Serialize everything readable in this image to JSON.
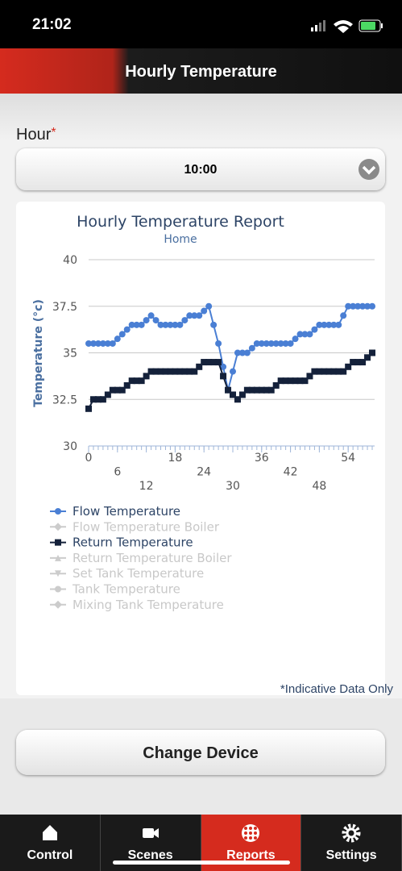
{
  "status_bar": {
    "time": "21:02"
  },
  "header": {
    "title": "Hourly Temperature"
  },
  "form": {
    "label": "Hour",
    "required_mark": "*",
    "selected": "10:00"
  },
  "chart_data": {
    "type": "line",
    "title": "Hourly Temperature Report",
    "subtitle": "Home",
    "y_label": "Temperature (°c)",
    "x": [
      0,
      1,
      2,
      3,
      4,
      5,
      6,
      7,
      8,
      9,
      10,
      11,
      12,
      13,
      14,
      15,
      16,
      17,
      18,
      19,
      20,
      21,
      22,
      23,
      24,
      25,
      26,
      27,
      28,
      29,
      30,
      31,
      32,
      33,
      34,
      35,
      36,
      37,
      38,
      39,
      40,
      41,
      42,
      43,
      44,
      45,
      46,
      47,
      48,
      49,
      50,
      51,
      52,
      53,
      54,
      55,
      56,
      57,
      58,
      59
    ],
    "xlim": [
      0,
      59.5
    ],
    "ylim": [
      30,
      40
    ],
    "xticks": [
      0,
      6,
      12,
      18,
      24,
      30,
      36,
      42,
      48,
      54
    ],
    "yticks": [
      30,
      32.5,
      35,
      37.5,
      40
    ],
    "grid": true,
    "series": [
      {
        "name": "Flow Temperature",
        "color": "#4a7fd4",
        "marker": "circle",
        "visible": true,
        "values": [
          35.5,
          35.5,
          35.5,
          35.5,
          35.5,
          35.5,
          35.75,
          36,
          36.25,
          36.5,
          36.5,
          36.5,
          36.75,
          37,
          36.75,
          36.5,
          36.5,
          36.5,
          36.5,
          36.5,
          36.75,
          37,
          37,
          37,
          37.25,
          37.5,
          36.5,
          35.5,
          34.25,
          33,
          34,
          35,
          35,
          35,
          35.25,
          35.5,
          35.5,
          35.5,
          35.5,
          35.5,
          35.5,
          35.5,
          35.5,
          35.75,
          36,
          36,
          36,
          36.25,
          36.5,
          36.5,
          36.5,
          36.5,
          36.5,
          37,
          37.5,
          37.5,
          37.5,
          37.5,
          37.5,
          37.5
        ]
      },
      {
        "name": "Flow Temperature Boiler",
        "color": "#cccccc",
        "marker": "diamond",
        "visible": false
      },
      {
        "name": "Return Temperature",
        "color": "#14213a",
        "marker": "square",
        "visible": true,
        "values": [
          32,
          32.5,
          32.5,
          32.5,
          32.75,
          33,
          33,
          33,
          33.25,
          33.5,
          33.5,
          33.5,
          33.75,
          34,
          34,
          34,
          34,
          34,
          34,
          34,
          34,
          34,
          34,
          34.25,
          34.5,
          34.5,
          34.5,
          34.5,
          33.75,
          33,
          32.75,
          32.5,
          32.75,
          33,
          33,
          33,
          33,
          33,
          33,
          33.25,
          33.5,
          33.5,
          33.5,
          33.5,
          33.5,
          33.5,
          33.75,
          34,
          34,
          34,
          34,
          34,
          34,
          34,
          34.25,
          34.5,
          34.5,
          34.5,
          34.75,
          35
        ]
      },
      {
        "name": "Return Temperature Boiler",
        "color": "#cccccc",
        "marker": "triangle",
        "visible": false
      },
      {
        "name": "Set Tank Temperature",
        "color": "#cccccc",
        "marker": "triangle-down",
        "visible": false
      },
      {
        "name": "Tank Temperature",
        "color": "#cccccc",
        "marker": "circle",
        "visible": false
      },
      {
        "name": "Mixing Tank Temperature",
        "color": "#cccccc",
        "marker": "diamond",
        "visible": false
      }
    ]
  },
  "footnote": "*Indicative Data Only",
  "button": "Change Device",
  "tabs": [
    "Control",
    "Scenes",
    "Reports",
    "Settings"
  ],
  "active_tab": 2
}
